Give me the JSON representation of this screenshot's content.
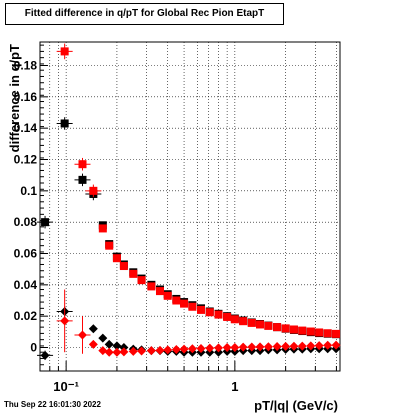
{
  "chart_data": {
    "type": "scatter",
    "title": "Fitted difference in q/pT for Global Rec Pion EtapT",
    "xlabel": "pT/|q| (GeV/c)",
    "ylabel": "difference in q/pT",
    "x_scale": "log",
    "xlim": [
      0.07,
      4.2
    ],
    "ylim": [
      -0.015,
      0.195
    ],
    "grid": true,
    "x_ticks": [
      {
        "value": 0.1,
        "label": "10⁻¹"
      },
      {
        "value": 1,
        "label": "1"
      }
    ],
    "y_ticks": [
      0,
      0.02,
      0.04,
      0.06,
      0.08,
      0.1,
      0.12,
      0.14,
      0.16,
      0.18
    ],
    "y_tick_labels": [
      "0",
      "0.02",
      "0.04",
      "0.06",
      "0.08",
      "0.1",
      "0.12",
      "0.14",
      "0.16",
      "0.18"
    ],
    "series": [
      {
        "marker": "square",
        "color": "#000000",
        "points": [
          {
            "x": 0.075,
            "y": 0.08,
            "err": 0.004
          },
          {
            "x": 0.098,
            "y": 0.143,
            "err": 0.004
          },
          {
            "x": 0.125,
            "y": 0.107,
            "err": 0.004
          },
          {
            "x": 0.145,
            "y": 0.098,
            "err": 0.004
          },
          {
            "x": 0.165,
            "y": 0.078
          },
          {
            "x": 0.18,
            "y": 0.066
          },
          {
            "x": 0.2,
            "y": 0.058
          },
          {
            "x": 0.22,
            "y": 0.053
          },
          {
            "x": 0.25,
            "y": 0.048
          },
          {
            "x": 0.28,
            "y": 0.044
          },
          {
            "x": 0.32,
            "y": 0.04
          },
          {
            "x": 0.36,
            "y": 0.037
          },
          {
            "x": 0.4,
            "y": 0.034
          },
          {
            "x": 0.45,
            "y": 0.031
          },
          {
            "x": 0.5,
            "y": 0.029
          },
          {
            "x": 0.56,
            "y": 0.027
          },
          {
            "x": 0.63,
            "y": 0.025
          },
          {
            "x": 0.71,
            "y": 0.023
          },
          {
            "x": 0.8,
            "y": 0.0215
          },
          {
            "x": 0.9,
            "y": 0.02
          },
          {
            "x": 1.0,
            "y": 0.0185
          },
          {
            "x": 1.12,
            "y": 0.0172
          },
          {
            "x": 1.26,
            "y": 0.016
          },
          {
            "x": 1.41,
            "y": 0.015
          },
          {
            "x": 1.58,
            "y": 0.014
          },
          {
            "x": 1.78,
            "y": 0.013
          },
          {
            "x": 2.0,
            "y": 0.012
          },
          {
            "x": 2.24,
            "y": 0.0112
          },
          {
            "x": 2.51,
            "y": 0.0105
          },
          {
            "x": 2.82,
            "y": 0.0098
          },
          {
            "x": 3.16,
            "y": 0.0092
          },
          {
            "x": 3.55,
            "y": 0.0088
          },
          {
            "x": 3.98,
            "y": 0.0085
          }
        ]
      },
      {
        "marker": "square",
        "color": "#ff0000",
        "points": [
          {
            "x": 0.098,
            "y": 0.189,
            "err": 0.005
          },
          {
            "x": 0.125,
            "y": 0.117,
            "err": 0.004
          },
          {
            "x": 0.145,
            "y": 0.1,
            "err": 0.004
          },
          {
            "x": 0.165,
            "y": 0.076
          },
          {
            "x": 0.18,
            "y": 0.065
          },
          {
            "x": 0.2,
            "y": 0.057
          },
          {
            "x": 0.22,
            "y": 0.052
          },
          {
            "x": 0.25,
            "y": 0.047
          },
          {
            "x": 0.28,
            "y": 0.043
          },
          {
            "x": 0.32,
            "y": 0.039
          },
          {
            "x": 0.36,
            "y": 0.036
          },
          {
            "x": 0.4,
            "y": 0.033
          },
          {
            "x": 0.45,
            "y": 0.03
          },
          {
            "x": 0.5,
            "y": 0.028
          },
          {
            "x": 0.56,
            "y": 0.026
          },
          {
            "x": 0.63,
            "y": 0.024
          },
          {
            "x": 0.71,
            "y": 0.0225
          },
          {
            "x": 0.8,
            "y": 0.021
          },
          {
            "x": 0.9,
            "y": 0.0195
          },
          {
            "x": 1.0,
            "y": 0.018
          },
          {
            "x": 1.12,
            "y": 0.0168
          },
          {
            "x": 1.26,
            "y": 0.0157
          },
          {
            "x": 1.41,
            "y": 0.0147
          },
          {
            "x": 1.58,
            "y": 0.0138
          },
          {
            "x": 1.78,
            "y": 0.013
          },
          {
            "x": 2.0,
            "y": 0.0122
          },
          {
            "x": 2.24,
            "y": 0.0115
          },
          {
            "x": 2.51,
            "y": 0.0108
          },
          {
            "x": 2.82,
            "y": 0.0102
          },
          {
            "x": 3.16,
            "y": 0.0096
          },
          {
            "x": 3.55,
            "y": 0.0091
          },
          {
            "x": 3.98,
            "y": 0.0087
          }
        ]
      },
      {
        "marker": "diamond",
        "color": "#000000",
        "points": [
          {
            "x": 0.075,
            "y": -0.005,
            "err": 0.003
          },
          {
            "x": 0.098,
            "y": 0.023,
            "err": 0.003
          },
          {
            "x": 0.145,
            "y": 0.012
          },
          {
            "x": 0.165,
            "y": 0.006
          },
          {
            "x": 0.18,
            "y": 0.002
          },
          {
            "x": 0.2,
            "y": 0.001
          },
          {
            "x": 0.22,
            "y": 0.0
          },
          {
            "x": 0.25,
            "y": -0.001
          },
          {
            "x": 0.28,
            "y": -0.0015
          },
          {
            "x": 0.32,
            "y": -0.002
          },
          {
            "x": 0.36,
            "y": -0.002
          },
          {
            "x": 0.4,
            "y": -0.0025
          },
          {
            "x": 0.45,
            "y": -0.0025
          },
          {
            "x": 0.5,
            "y": -0.003
          },
          {
            "x": 0.56,
            "y": -0.003
          },
          {
            "x": 0.63,
            "y": -0.003
          },
          {
            "x": 0.71,
            "y": -0.003
          },
          {
            "x": 0.8,
            "y": -0.003
          },
          {
            "x": 0.9,
            "y": -0.0025
          },
          {
            "x": 1.0,
            "y": -0.0025
          },
          {
            "x": 1.12,
            "y": -0.002
          },
          {
            "x": 1.26,
            "y": -0.002
          },
          {
            "x": 1.41,
            "y": -0.002
          },
          {
            "x": 1.58,
            "y": -0.0015
          },
          {
            "x": 1.78,
            "y": -0.0015
          },
          {
            "x": 2.0,
            "y": -0.0012
          },
          {
            "x": 2.24,
            "y": -0.001
          },
          {
            "x": 2.51,
            "y": -0.001
          },
          {
            "x": 2.82,
            "y": -0.0008
          },
          {
            "x": 3.16,
            "y": -0.0008
          },
          {
            "x": 3.55,
            "y": -0.0008
          },
          {
            "x": 3.98,
            "y": -0.0008
          }
        ]
      },
      {
        "marker": "diamond",
        "color": "#ff0000",
        "points": [
          {
            "x": 0.098,
            "y": 0.017,
            "err": 0.02
          },
          {
            "x": 0.125,
            "y": 0.008,
            "err": 0.012
          },
          {
            "x": 0.145,
            "y": 0.002
          },
          {
            "x": 0.165,
            "y": -0.002
          },
          {
            "x": 0.18,
            "y": -0.003
          },
          {
            "x": 0.2,
            "y": -0.003
          },
          {
            "x": 0.22,
            "y": -0.0028
          },
          {
            "x": 0.25,
            "y": -0.0025
          },
          {
            "x": 0.28,
            "y": -0.0022
          },
          {
            "x": 0.32,
            "y": -0.002
          },
          {
            "x": 0.36,
            "y": -0.0018
          },
          {
            "x": 0.4,
            "y": -0.0015
          },
          {
            "x": 0.45,
            "y": -0.0013
          },
          {
            "x": 0.5,
            "y": -0.001
          },
          {
            "x": 0.56,
            "y": -0.0008
          },
          {
            "x": 0.63,
            "y": -0.0006
          },
          {
            "x": 0.71,
            "y": -0.0004
          },
          {
            "x": 0.8,
            "y": -0.0002
          },
          {
            "x": 0.9,
            "y": 0.0
          },
          {
            "x": 1.0,
            "y": 0.0
          },
          {
            "x": 1.12,
            "y": 0.0002
          },
          {
            "x": 1.26,
            "y": 0.0003
          },
          {
            "x": 1.41,
            "y": 0.0004
          },
          {
            "x": 1.58,
            "y": 0.0005
          },
          {
            "x": 1.78,
            "y": 0.0006
          },
          {
            "x": 2.0,
            "y": 0.0007
          },
          {
            "x": 2.24,
            "y": 0.0008
          },
          {
            "x": 2.51,
            "y": 0.0009
          },
          {
            "x": 2.82,
            "y": 0.001
          },
          {
            "x": 3.16,
            "y": 0.0012
          },
          {
            "x": 3.55,
            "y": 0.0014
          },
          {
            "x": 3.98,
            "y": 0.0015
          }
        ]
      }
    ]
  },
  "timestamp": "Thu Sep 22 16:01:30 2022"
}
